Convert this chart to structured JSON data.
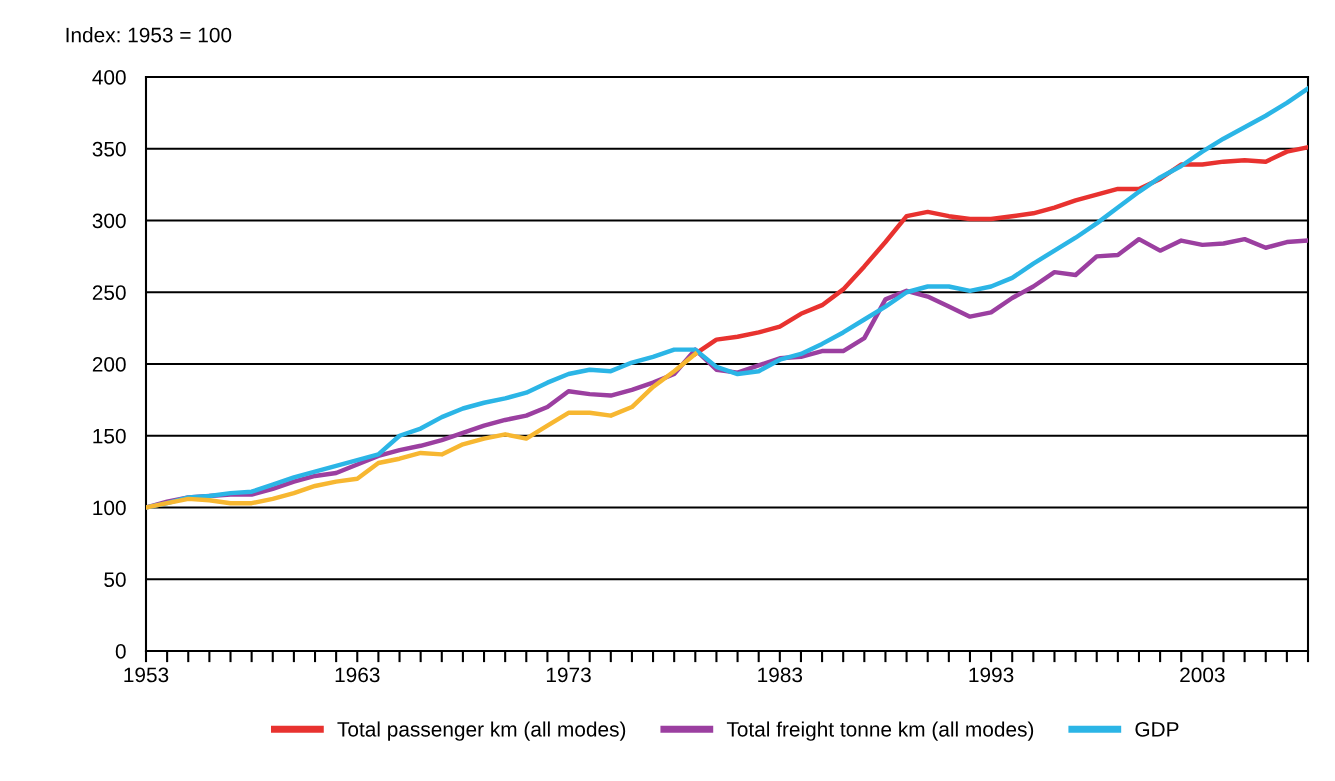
{
  "chart_data": {
    "type": "line",
    "ylabel": "Index: 1953 = 100",
    "x": [
      1953,
      1954,
      1955,
      1956,
      1957,
      1958,
      1959,
      1960,
      1961,
      1962,
      1963,
      1964,
      1965,
      1966,
      1967,
      1968,
      1969,
      1970,
      1971,
      1972,
      1973,
      1974,
      1975,
      1976,
      1977,
      1978,
      1979,
      1980,
      1981,
      1982,
      1983,
      1984,
      1985,
      1986,
      1987,
      1988,
      1989,
      1990,
      1991,
      1992,
      1993,
      1994,
      1995,
      1996,
      1997,
      1998,
      1999,
      2000,
      2001,
      2002,
      2003,
      2004,
      2005,
      2006,
      2007,
      2008
    ],
    "series": [
      {
        "name": "Total passenger km (all modes)",
        "color": "#e8322f",
        "x": [
          1979,
          1980,
          1981,
          1982,
          1983,
          1984,
          1985,
          1986,
          1987,
          1988,
          1989,
          1990,
          1991,
          1992,
          1993,
          1994,
          1995,
          1996,
          1997,
          1998,
          1999,
          2000,
          2001,
          2002,
          2003,
          2004,
          2005,
          2006,
          2007,
          2008
        ],
        "values": [
          207,
          217,
          219,
          222,
          226,
          235,
          241,
          252,
          268,
          285,
          303,
          306,
          303,
          301,
          301,
          303,
          305,
          309,
          314,
          318,
          322,
          322,
          329,
          339,
          339,
          341,
          342,
          341,
          348,
          351
        ]
      },
      {
        "name": "Total freight tonne km (all modes)",
        "color": "#9b3fa0",
        "values": [
          100,
          104,
          107,
          108,
          109,
          109,
          113,
          118,
          122,
          124,
          130,
          136,
          140,
          143,
          147,
          152,
          157,
          161,
          164,
          170,
          181,
          179,
          178,
          182,
          187,
          193,
          210,
          196,
          194,
          199,
          204,
          205,
          209,
          209,
          218,
          245,
          251,
          247,
          240,
          233,
          236,
          246,
          254,
          264,
          262,
          275,
          276,
          287,
          279,
          286,
          283,
          284,
          287,
          281,
          285,
          286
        ]
      },
      {
        "name": "GDP",
        "color": "#2bb5e6",
        "values": [
          100,
          103,
          107,
          108,
          110,
          111,
          116,
          121,
          125,
          129,
          133,
          137,
          150,
          155,
          163,
          169,
          173,
          176,
          180,
          187,
          193,
          196,
          195,
          201,
          205,
          210,
          210,
          198,
          193,
          195,
          203,
          207,
          214,
          222,
          231,
          240,
          250,
          254,
          254,
          251,
          254,
          260,
          270,
          279,
          288,
          298,
          309,
          320,
          330,
          338,
          348,
          357,
          365,
          373,
          382,
          392
        ]
      },
      {
        "color": "#f7b731",
        "x": [
          1953,
          1954,
          1955,
          1956,
          1957,
          1958,
          1959,
          1960,
          1961,
          1962,
          1963,
          1964,
          1965,
          1966,
          1967,
          1968,
          1969,
          1970,
          1971,
          1972,
          1973,
          1974,
          1975,
          1976,
          1977,
          1978,
          1979
        ],
        "values": [
          100,
          103,
          106,
          105,
          103,
          103,
          106,
          110,
          115,
          118,
          120,
          131,
          134,
          138,
          137,
          144,
          148,
          151,
          148,
          157,
          166,
          166,
          164,
          170,
          184,
          195,
          207
        ]
      }
    ],
    "xlim": [
      1953,
      2008
    ],
    "xticks": [
      1953,
      {
        "value": 1954,
        "label": null
      },
      {
        "value": 1955,
        "label": null
      },
      {
        "value": 1956,
        "label": null
      },
      {
        "value": 1957,
        "label": null
      },
      {
        "value": 1958,
        "label": null
      },
      {
        "value": 1959,
        "label": null
      },
      {
        "value": 1960,
        "label": null
      },
      {
        "value": 1961,
        "label": null
      },
      {
        "value": 1962,
        "label": null
      },
      1963,
      {
        "value": 1964,
        "label": null
      },
      {
        "value": 1965,
        "label": null
      },
      {
        "value": 1966,
        "label": null
      },
      {
        "value": 1967,
        "label": null
      },
      {
        "value": 1968,
        "label": null
      },
      {
        "value": 1969,
        "label": null
      },
      {
        "value": 1970,
        "label": null
      },
      {
        "value": 1971,
        "label": null
      },
      {
        "value": 1972,
        "label": null
      },
      1973,
      {
        "value": 1974,
        "label": null
      },
      {
        "value": 1975,
        "label": null
      },
      {
        "value": 1976,
        "label": null
      },
      {
        "value": 1977,
        "label": null
      },
      {
        "value": 1978,
        "label": null
      },
      {
        "value": 1979,
        "label": null
      },
      {
        "value": 1980,
        "label": null
      },
      {
        "value": 1981,
        "label": null
      },
      {
        "value": 1982,
        "label": null
      },
      1983,
      {
        "value": 1984,
        "label": null
      },
      {
        "value": 1985,
        "label": null
      },
      {
        "value": 1986,
        "label": null
      },
      {
        "value": 1987,
        "label": null
      },
      {
        "value": 1988,
        "label": null
      },
      {
        "value": 1989,
        "label": null
      },
      {
        "value": 1990,
        "label": null
      },
      {
        "value": 1991,
        "label": null
      },
      {
        "value": 1992,
        "label": null
      },
      1993,
      {
        "value": 1994,
        "label": null
      },
      {
        "value": 1995,
        "label": null
      },
      {
        "value": 1996,
        "label": null
      },
      {
        "value": 1997,
        "label": null
      },
      {
        "value": 1998,
        "label": null
      },
      {
        "value": 1999,
        "label": null
      },
      {
        "value": 2000,
        "label": null
      },
      {
        "value": 2001,
        "label": null
      },
      {
        "value": 2002,
        "label": null
      },
      2003,
      {
        "value": 2004,
        "label": null
      },
      {
        "value": 2005,
        "label": null
      },
      {
        "value": 2006,
        "label": null
      },
      {
        "value": 2007,
        "label": null
      },
      {
        "value": 2008,
        "label": null
      }
    ],
    "ylim": [
      0,
      400
    ],
    "yticks": [
      0,
      50,
      100,
      150,
      200,
      250,
      300,
      350,
      400
    ],
    "grid": "y",
    "legend": "bottom",
    "marker": "none",
    "line_style": "solid"
  }
}
